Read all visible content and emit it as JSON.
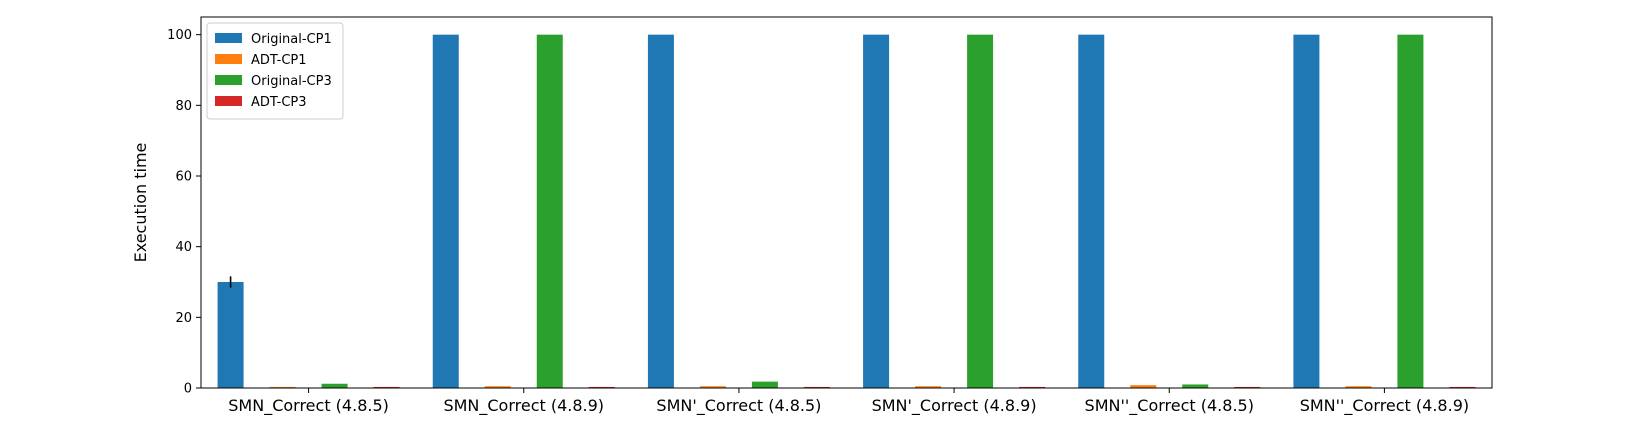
{
  "chart_data": {
    "type": "bar",
    "title": "",
    "xlabel": "",
    "ylabel": "Execution time",
    "ylim": [
      0,
      105
    ],
    "yticks": [
      0,
      20,
      40,
      60,
      80,
      100
    ],
    "grid": false,
    "legend_position": "top-left",
    "categories": [
      "SMN_Correct (4.8.5)",
      "SMN_Correct (4.8.9)",
      "SMN'_Correct (4.8.5)",
      "SMN'_Correct (4.8.9)",
      "SMN''_Correct (4.8.5)",
      "SMN''_Correct (4.8.9)"
    ],
    "series": [
      {
        "name": "Original-CP1",
        "color": "#1f77b4",
        "values": [
          30,
          100,
          100,
          100,
          100,
          100
        ],
        "errors": [
          1.6,
          0,
          0,
          0,
          0,
          0
        ]
      },
      {
        "name": "ADT-CP1",
        "color": "#ff7f0e",
        "values": [
          0.3,
          0.5,
          0.5,
          0.5,
          0.8,
          0.5
        ],
        "errors": [
          0,
          0,
          0,
          0,
          0,
          0
        ]
      },
      {
        "name": "Original-CP3",
        "color": "#2ca02c",
        "values": [
          1.2,
          100,
          1.8,
          100,
          1.0,
          100
        ],
        "errors": [
          0,
          0,
          0,
          0,
          0,
          0
        ]
      },
      {
        "name": "ADT-CP3",
        "color": "#d62728",
        "values": [
          0.3,
          0.3,
          0.3,
          0.3,
          0.3,
          0.3
        ],
        "errors": [
          0,
          0,
          0,
          0,
          0,
          0
        ]
      }
    ]
  }
}
